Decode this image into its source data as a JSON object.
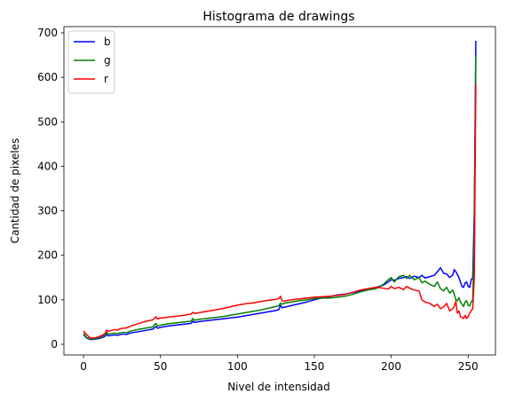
{
  "chart_data": {
    "type": "line",
    "title": "Histograma de drawings",
    "xlabel": "Nivel de intensidad",
    "ylabel": "Cantidad de pixeles",
    "xlim": [
      -12.75,
      267.75
    ],
    "ylim": [
      -24,
      714
    ],
    "xticks": [
      0,
      50,
      100,
      150,
      200,
      250
    ],
    "yticks": [
      0,
      100,
      200,
      300,
      400,
      500,
      600,
      700
    ],
    "grid": false,
    "legend": "top-left",
    "series": [
      {
        "name": "b",
        "color": "#0000ff",
        "points": [
          [
            0,
            22
          ],
          [
            2,
            14
          ],
          [
            4,
            11
          ],
          [
            6,
            11
          ],
          [
            8,
            12
          ],
          [
            10,
            13
          ],
          [
            12,
            15
          ],
          [
            14,
            18
          ],
          [
            15,
            22
          ],
          [
            16,
            19
          ],
          [
            18,
            20
          ],
          [
            20,
            21
          ],
          [
            22,
            20
          ],
          [
            24,
            22
          ],
          [
            26,
            23
          ],
          [
            28,
            22
          ],
          [
            30,
            25
          ],
          [
            35,
            28
          ],
          [
            40,
            31
          ],
          [
            45,
            34
          ],
          [
            47,
            40
          ],
          [
            48,
            36
          ],
          [
            50,
            38
          ],
          [
            55,
            41
          ],
          [
            60,
            43
          ],
          [
            65,
            45
          ],
          [
            70,
            47
          ],
          [
            71,
            52
          ],
          [
            72,
            49
          ],
          [
            75,
            51
          ],
          [
            80,
            53
          ],
          [
            85,
            55
          ],
          [
            90,
            57
          ],
          [
            95,
            59
          ],
          [
            100,
            61
          ],
          [
            105,
            64
          ],
          [
            110,
            67
          ],
          [
            115,
            70
          ],
          [
            120,
            73
          ],
          [
            125,
            76
          ],
          [
            127,
            78
          ],
          [
            128,
            88
          ],
          [
            129,
            82
          ],
          [
            130,
            83
          ],
          [
            135,
            87
          ],
          [
            140,
            91
          ],
          [
            145,
            95
          ],
          [
            150,
            100
          ],
          [
            155,
            104
          ],
          [
            160,
            107
          ],
          [
            165,
            111
          ],
          [
            170,
            113
          ],
          [
            175,
            116
          ],
          [
            180,
            120
          ],
          [
            185,
            123
          ],
          [
            190,
            128
          ],
          [
            195,
            133
          ],
          [
            198,
            140
          ],
          [
            200,
            145
          ],
          [
            202,
            144
          ],
          [
            205,
            148
          ],
          [
            208,
            150
          ],
          [
            210,
            152
          ],
          [
            212,
            148
          ],
          [
            215,
            153
          ],
          [
            218,
            150
          ],
          [
            220,
            155
          ],
          [
            222,
            149
          ],
          [
            225,
            152
          ],
          [
            228,
            155
          ],
          [
            230,
            163
          ],
          [
            232,
            172
          ],
          [
            234,
            160
          ],
          [
            236,
            158
          ],
          [
            238,
            150
          ],
          [
            240,
            156
          ],
          [
            241,
            168
          ],
          [
            242,
            163
          ],
          [
            243,
            157
          ],
          [
            244,
            150
          ],
          [
            245,
            140
          ],
          [
            246,
            130
          ],
          [
            247,
            128
          ],
          [
            248,
            138
          ],
          [
            249,
            140
          ],
          [
            250,
            130
          ],
          [
            251,
            128
          ],
          [
            252,
            145
          ],
          [
            253,
            150
          ],
          [
            254,
            300
          ],
          [
            255,
            682
          ]
        ]
      },
      {
        "name": "g",
        "color": "#008000",
        "points": [
          [
            0,
            25
          ],
          [
            2,
            15
          ],
          [
            4,
            12
          ],
          [
            6,
            12
          ],
          [
            8,
            13
          ],
          [
            10,
            15
          ],
          [
            12,
            17
          ],
          [
            14,
            21
          ],
          [
            15,
            27
          ],
          [
            16,
            23
          ],
          [
            18,
            24
          ],
          [
            20,
            25
          ],
          [
            22,
            24
          ],
          [
            24,
            26
          ],
          [
            26,
            27
          ],
          [
            28,
            26
          ],
          [
            30,
            29
          ],
          [
            35,
            33
          ],
          [
            40,
            36
          ],
          [
            45,
            39
          ],
          [
            47,
            47
          ],
          [
            48,
            41
          ],
          [
            50,
            43
          ],
          [
            55,
            46
          ],
          [
            60,
            48
          ],
          [
            65,
            50
          ],
          [
            70,
            52
          ],
          [
            71,
            58
          ],
          [
            72,
            54
          ],
          [
            75,
            56
          ],
          [
            80,
            58
          ],
          [
            85,
            60
          ],
          [
            90,
            62
          ],
          [
            95,
            65
          ],
          [
            100,
            68
          ],
          [
            105,
            71
          ],
          [
            110,
            74
          ],
          [
            115,
            77
          ],
          [
            120,
            81
          ],
          [
            125,
            85
          ],
          [
            127,
            87
          ],
          [
            128,
            93
          ],
          [
            129,
            90
          ],
          [
            130,
            92
          ],
          [
            135,
            95
          ],
          [
            140,
            98
          ],
          [
            145,
            100
          ],
          [
            150,
            103
          ],
          [
            155,
            104
          ],
          [
            160,
            104
          ],
          [
            165,
            106
          ],
          [
            170,
            108
          ],
          [
            175,
            112
          ],
          [
            180,
            118
          ],
          [
            185,
            122
          ],
          [
            190,
            125
          ],
          [
            195,
            135
          ],
          [
            198,
            145
          ],
          [
            200,
            150
          ],
          [
            202,
            140
          ],
          [
            205,
            152
          ],
          [
            208,
            155
          ],
          [
            210,
            148
          ],
          [
            212,
            155
          ],
          [
            215,
            145
          ],
          [
            218,
            150
          ],
          [
            220,
            138
          ],
          [
            222,
            142
          ],
          [
            225,
            135
          ],
          [
            228,
            130
          ],
          [
            230,
            140
          ],
          [
            232,
            125
          ],
          [
            234,
            120
          ],
          [
            236,
            128
          ],
          [
            238,
            115
          ],
          [
            240,
            122
          ],
          [
            241,
            112
          ],
          [
            242,
            100
          ],
          [
            243,
            98
          ],
          [
            244,
            105
          ],
          [
            245,
            95
          ],
          [
            246,
            90
          ],
          [
            247,
            85
          ],
          [
            248,
            95
          ],
          [
            249,
            98
          ],
          [
            250,
            88
          ],
          [
            251,
            86
          ],
          [
            252,
            95
          ],
          [
            253,
            100
          ],
          [
            254,
            250
          ],
          [
            255,
            648
          ]
        ]
      },
      {
        "name": "r",
        "color": "#ff0000",
        "points": [
          [
            0,
            30
          ],
          [
            2,
            22
          ],
          [
            4,
            15
          ],
          [
            6,
            14
          ],
          [
            8,
            15
          ],
          [
            10,
            17
          ],
          [
            12,
            20
          ],
          [
            14,
            24
          ],
          [
            15,
            32
          ],
          [
            16,
            29
          ],
          [
            18,
            31
          ],
          [
            20,
            33
          ],
          [
            22,
            32
          ],
          [
            24,
            35
          ],
          [
            26,
            36
          ],
          [
            28,
            37
          ],
          [
            30,
            40
          ],
          [
            35,
            46
          ],
          [
            40,
            51
          ],
          [
            45,
            55
          ],
          [
            47,
            62
          ],
          [
            48,
            57
          ],
          [
            50,
            59
          ],
          [
            55,
            61
          ],
          [
            60,
            63
          ],
          [
            65,
            65
          ],
          [
            70,
            68
          ],
          [
            71,
            72
          ],
          [
            72,
            69
          ],
          [
            75,
            71
          ],
          [
            80,
            74
          ],
          [
            85,
            77
          ],
          [
            90,
            80
          ],
          [
            95,
            84
          ],
          [
            100,
            88
          ],
          [
            105,
            91
          ],
          [
            110,
            93
          ],
          [
            115,
            96
          ],
          [
            120,
            99
          ],
          [
            125,
            101
          ],
          [
            127,
            103
          ],
          [
            128,
            108
          ],
          [
            129,
            98
          ],
          [
            130,
            97
          ],
          [
            135,
            100
          ],
          [
            140,
            102
          ],
          [
            145,
            104
          ],
          [
            150,
            106
          ],
          [
            155,
            107
          ],
          [
            160,
            108
          ],
          [
            165,
            110
          ],
          [
            170,
            112
          ],
          [
            175,
            117
          ],
          [
            180,
            122
          ],
          [
            185,
            125
          ],
          [
            190,
            128
          ],
          [
            195,
            126
          ],
          [
            198,
            124
          ],
          [
            200,
            130
          ],
          [
            202,
            125
          ],
          [
            205,
            128
          ],
          [
            208,
            123
          ],
          [
            210,
            130
          ],
          [
            212,
            126
          ],
          [
            215,
            122
          ],
          [
            218,
            120
          ],
          [
            220,
            100
          ],
          [
            222,
            95
          ],
          [
            225,
            92
          ],
          [
            228,
            85
          ],
          [
            230,
            90
          ],
          [
            232,
            80
          ],
          [
            234,
            84
          ],
          [
            236,
            92
          ],
          [
            238,
            75
          ],
          [
            240,
            80
          ],
          [
            241,
            85
          ],
          [
            242,
            97
          ],
          [
            243,
            70
          ],
          [
            244,
            75
          ],
          [
            245,
            62
          ],
          [
            246,
            60
          ],
          [
            247,
            58
          ],
          [
            248,
            65
          ],
          [
            249,
            58
          ],
          [
            250,
            62
          ],
          [
            251,
            70
          ],
          [
            252,
            75
          ],
          [
            253,
            80
          ],
          [
            254,
            150
          ],
          [
            255,
            585
          ]
        ]
      }
    ]
  }
}
